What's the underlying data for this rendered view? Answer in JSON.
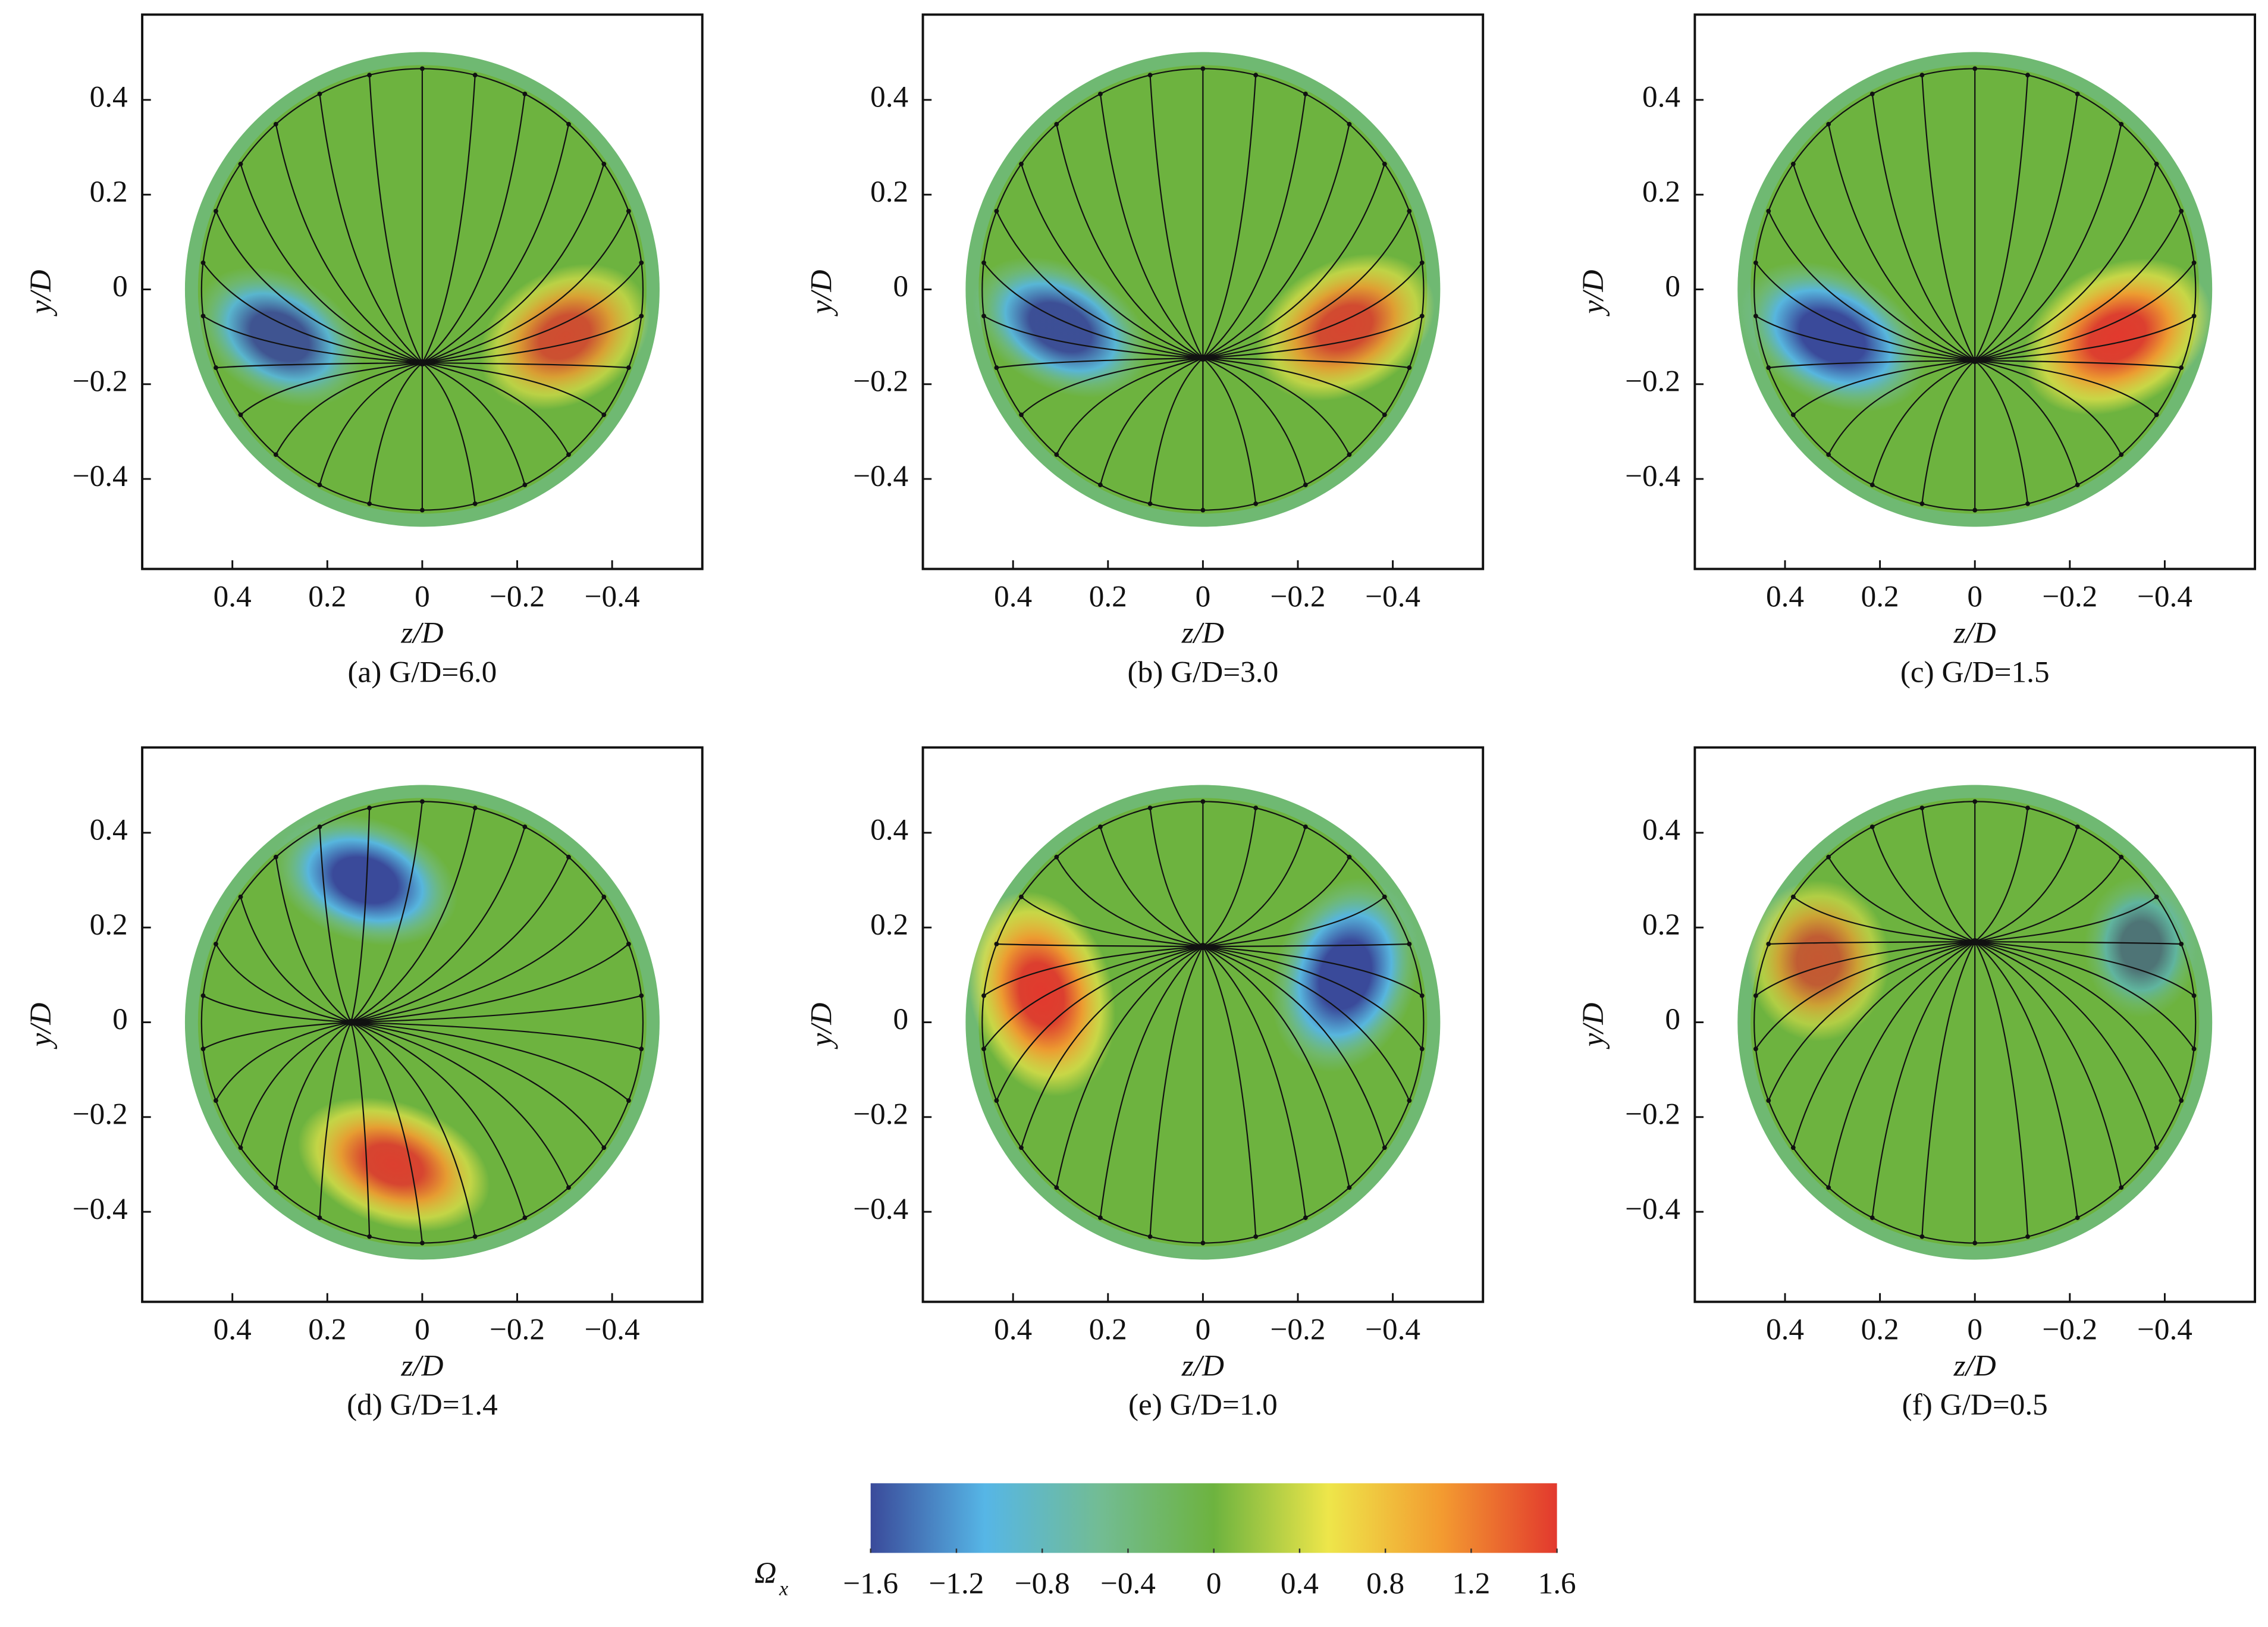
{
  "chart_data": [
    {
      "type": "contour",
      "title": "(a) G/D=6.0",
      "xlabel": "z/D",
      "ylabel": "y/D",
      "xlim": [
        0.59,
        -0.59
      ],
      "ylim": [
        -0.59,
        0.58
      ],
      "xticks": [
        0.4,
        0.2,
        0,
        {
          "value": -0.2,
          "label": "−0.2"
        },
        {
          "value": -0.4,
          "label": "−0.4"
        }
      ],
      "yticks": [
        {
          "value": -0.4,
          "label": "−0.4"
        },
        {
          "value": -0.2,
          "label": "−0.2"
        },
        0,
        0.2,
        0.4
      ]
    },
    {
      "type": "contour",
      "title": "(b) G/D=3.0",
      "xlabel": "z/D",
      "ylabel": "y/D",
      "xlim": [
        0.59,
        -0.59
      ],
      "ylim": [
        -0.59,
        0.58
      ],
      "xticks": [
        0.4,
        0.2,
        0,
        {
          "value": -0.2,
          "label": "−0.2"
        },
        {
          "value": -0.4,
          "label": "−0.4"
        }
      ],
      "yticks": [
        {
          "value": -0.4,
          "label": "−0.4"
        },
        {
          "value": -0.2,
          "label": "−0.2"
        },
        0,
        0.2,
        0.4
      ]
    },
    {
      "type": "contour",
      "title": "(c) G/D=1.5",
      "xlabel": "z/D",
      "ylabel": "y/D",
      "xlim": [
        0.59,
        -0.59
      ],
      "ylim": [
        -0.59,
        0.58
      ],
      "xticks": [
        0.4,
        0.2,
        0,
        {
          "value": -0.2,
          "label": "−0.2"
        },
        {
          "value": -0.4,
          "label": "−0.4"
        }
      ],
      "yticks": [
        {
          "value": -0.4,
          "label": "−0.4"
        },
        {
          "value": -0.2,
          "label": "−0.2"
        },
        0,
        0.2,
        0.4
      ]
    },
    {
      "type": "contour",
      "title": "(d) G/D=1.4",
      "xlabel": "z/D",
      "ylabel": "y/D",
      "xlim": [
        0.59,
        -0.59
      ],
      "ylim": [
        -0.59,
        0.58
      ],
      "xticks": [
        0.4,
        0.2,
        0,
        {
          "value": -0.2,
          "label": "−0.2"
        },
        {
          "value": -0.4,
          "label": "−0.4"
        }
      ],
      "yticks": [
        {
          "value": -0.4,
          "label": "−0.4"
        },
        {
          "value": -0.2,
          "label": "−0.2"
        },
        0,
        0.2,
        0.4
      ]
    },
    {
      "type": "contour",
      "title": "(e) G/D=1.0",
      "xlabel": "z/D",
      "ylabel": "y/D",
      "xlim": [
        0.59,
        -0.59
      ],
      "ylim": [
        -0.59,
        0.58
      ],
      "xticks": [
        0.4,
        0.2,
        0,
        {
          "value": -0.2,
          "label": "−0.2"
        },
        {
          "value": -0.4,
          "label": "−0.4"
        }
      ],
      "yticks": [
        {
          "value": -0.4,
          "label": "−0.4"
        },
        {
          "value": -0.2,
          "label": "−0.2"
        },
        0,
        0.2,
        0.4
      ]
    },
    {
      "type": "contour",
      "title": "(f) G/D=0.5",
      "xlabel": "z/D",
      "ylabel": "y/D",
      "xlim": [
        0.59,
        -0.59
      ],
      "ylim": [
        -0.59,
        0.58
      ],
      "xticks": [
        0.4,
        0.2,
        0,
        {
          "value": -0.2,
          "label": "−0.2"
        },
        {
          "value": -0.4,
          "label": "−0.4"
        }
      ],
      "yticks": [
        {
          "value": -0.4,
          "label": "−0.4"
        },
        {
          "value": -0.2,
          "label": "−0.2"
        },
        0,
        0.2,
        0.4
      ]
    },
    {
      "type": "colorbar",
      "label": "Ω",
      "label_subscript": "x",
      "lim": [
        -1.6,
        1.6
      ],
      "colors": [
        "#3a4a9a",
        "#56b6e6",
        "#72bc94",
        "#6db33f",
        "#eee64a",
        "#f39a30",
        "#e2392e"
      ],
      "ticks": [
        {
          "value": -1.6,
          "label": "−1.6"
        },
        {
          "value": -1.2,
          "label": "−1.2"
        },
        {
          "value": -0.8,
          "label": "−0.8"
        },
        {
          "value": -0.4,
          "label": "−0.4"
        },
        0,
        0.4,
        0.8,
        1.2,
        1.6
      ]
    }
  ]
}
